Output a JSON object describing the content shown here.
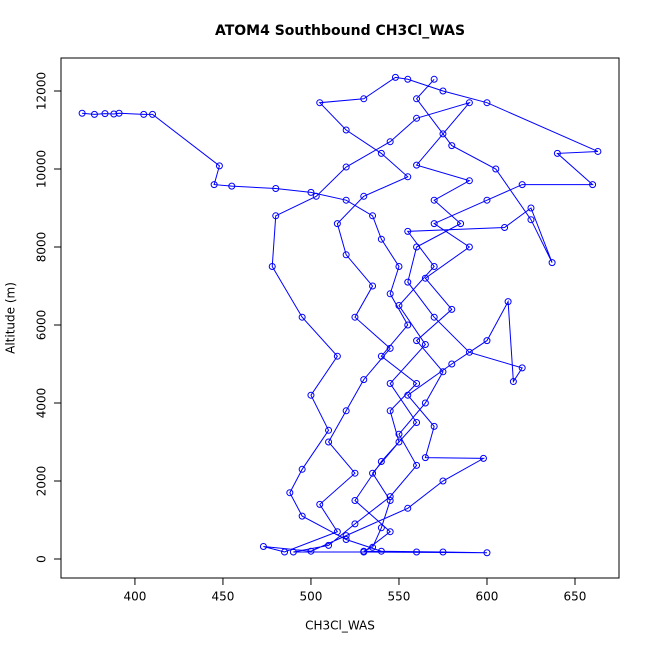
{
  "chart_data": {
    "type": "line",
    "markers": true,
    "title": "ATOM4 Southbound CH3Cl_WAS",
    "x_label": "CH3Cl_WAS",
    "y_label": "Altitude (m)",
    "color": "#0000ff",
    "xlim": [
      358,
      675
    ],
    "ylim": [
      -487,
      12846
    ],
    "xticks": [
      400,
      450,
      500,
      550,
      600,
      650
    ],
    "yticks": [
      0,
      2000,
      4000,
      6000,
      8000,
      10000,
      12000
    ],
    "x": [
      370,
      377,
      383,
      388,
      391,
      405,
      410,
      448,
      445,
      455,
      480,
      500,
      520,
      535,
      540,
      550,
      545,
      555,
      540,
      560,
      545,
      550,
      535,
      545,
      540,
      535,
      530,
      560,
      490,
      510,
      525,
      545,
      560,
      550,
      565,
      575,
      560,
      580,
      565,
      590,
      570,
      600,
      620,
      660,
      640,
      663,
      600,
      575,
      555,
      548,
      530,
      505,
      520,
      540,
      555,
      530,
      515,
      520,
      535,
      525,
      545,
      530,
      520,
      510,
      525,
      505,
      515,
      485,
      473,
      500,
      520,
      555,
      575,
      598,
      565,
      570,
      555,
      580,
      600,
      612,
      615,
      620,
      590,
      570,
      555,
      560,
      585,
      570,
      590,
      560,
      575,
      590,
      560,
      545,
      520,
      503,
      480,
      478,
      495,
      515,
      500,
      510,
      495,
      488,
      495,
      520,
      540,
      575,
      600,
      530,
      545,
      525,
      540,
      560,
      545,
      565,
      550,
      570,
      555,
      610,
      625,
      637,
      625,
      605,
      580,
      560,
      570
    ],
    "y": [
      11430,
      11400,
      11420,
      11410,
      11430,
      11400,
      11400,
      10080,
      9600,
      9560,
      9500,
      9400,
      9200,
      8800,
      8200,
      7500,
      6800,
      6000,
      5200,
      4500,
      3800,
      3000,
      2200,
      1500,
      800,
      300,
      200,
      180,
      180,
      350,
      900,
      1600,
      2400,
      3200,
      4000,
      4800,
      5600,
      6400,
      7200,
      8000,
      8600,
      9200,
      9600,
      9600,
      10400,
      10450,
      11700,
      12000,
      12300,
      12350,
      11800,
      11700,
      11000,
      10400,
      9800,
      9300,
      8600,
      7800,
      7000,
      6200,
      5400,
      4600,
      3800,
      3000,
      2200,
      1400,
      700,
      180,
      320,
      200,
      600,
      1300,
      2000,
      2580,
      2600,
      3400,
      4200,
      5000,
      5600,
      6600,
      4550,
      4900,
      5300,
      6200,
      7100,
      8000,
      8600,
      9200,
      9700,
      10100,
      10900,
      11700,
      11300,
      10700,
      10050,
      9300,
      8800,
      7500,
      6200,
      5200,
      4200,
      3300,
      2300,
      1700,
      1100,
      500,
      200,
      180,
      160,
      180,
      700,
      1500,
      2500,
      3500,
      4500,
      5500,
      6500,
      7500,
      8400,
      8500,
      9000,
      7600,
      8700,
      10000,
      10600,
      11800,
      12300
    ]
  }
}
